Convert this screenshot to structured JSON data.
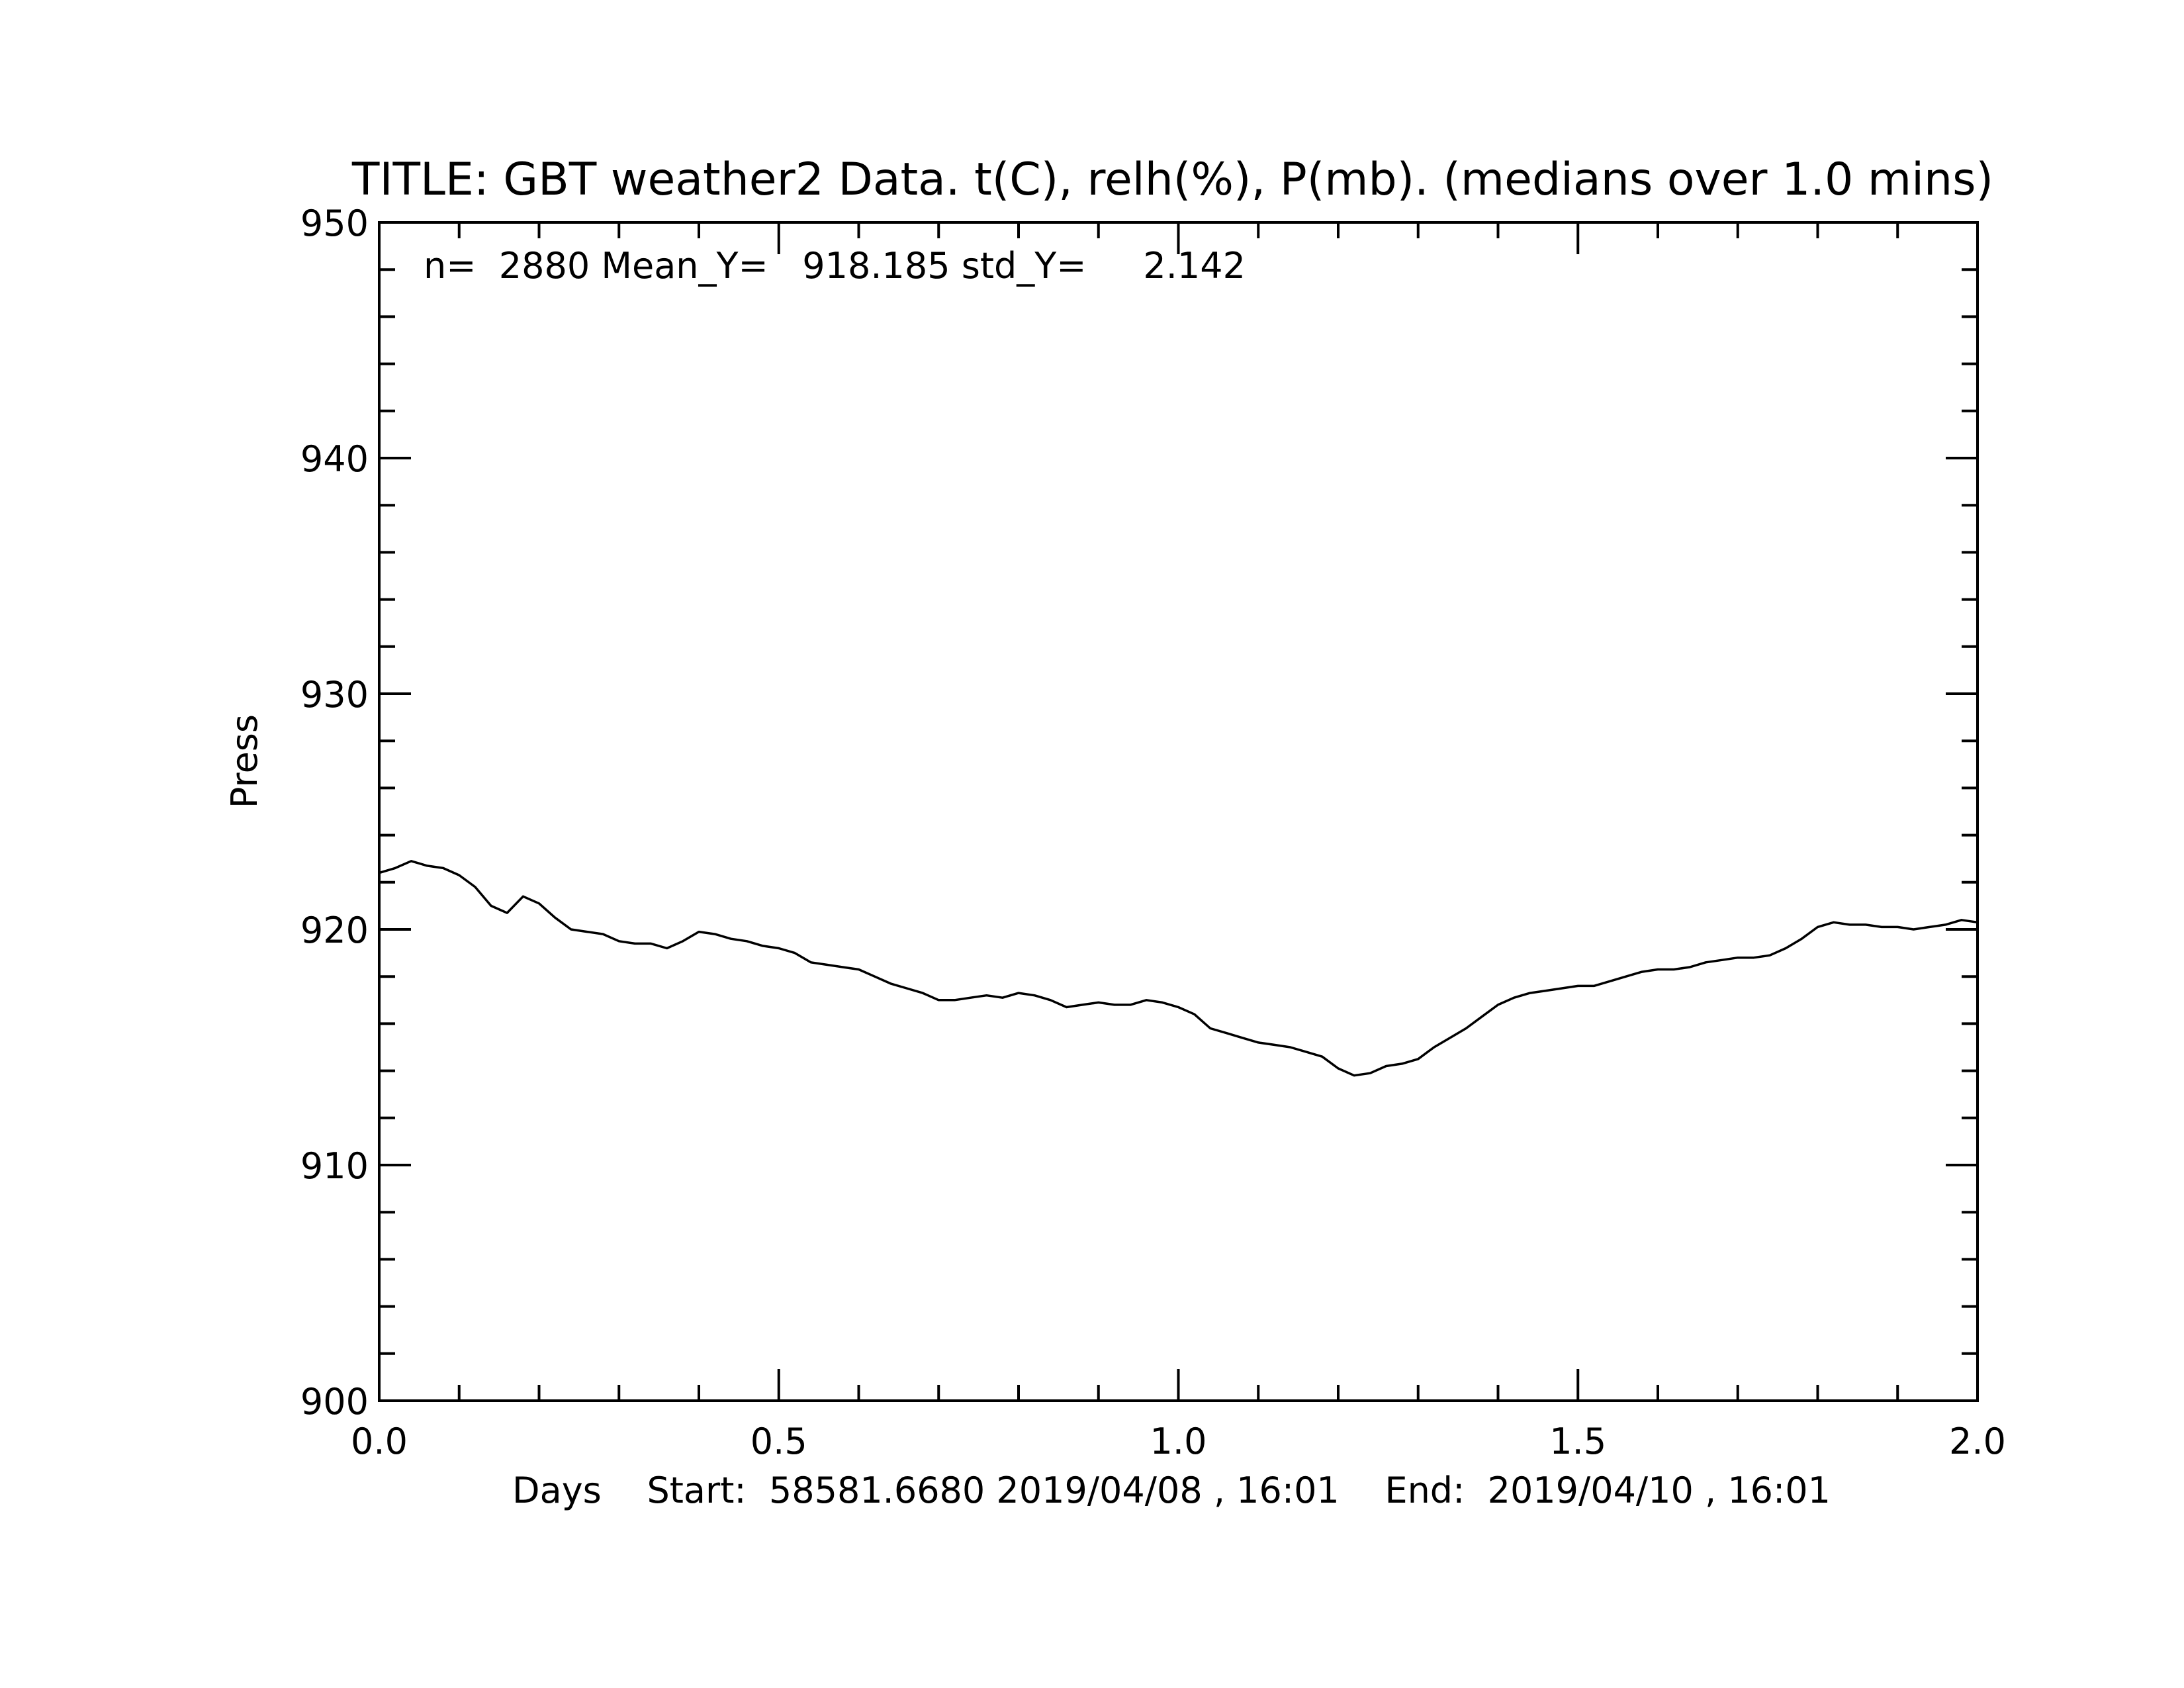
{
  "chart_data": {
    "type": "line",
    "title": "TITLE: GBT weather2 Data. t(C), relh(%), P(mb). (medians over 1.0 mins)",
    "stats_text": "n=  2880 Mean_Y=   918.185 std_Y=     2.142",
    "ylabel": "Press",
    "xlabel": "Days    Start:  58581.6680 2019/04/08 , 16:01    End:  2019/04/10 , 16:01",
    "xlim": [
      0.0,
      2.0
    ],
    "ylim": [
      900,
      950
    ],
    "x_ticks": [
      "0.0",
      "0.5",
      "1.0",
      "1.5",
      "2.0"
    ],
    "y_ticks": [
      "900",
      "910",
      "920",
      "930",
      "940",
      "950"
    ],
    "grid": false,
    "line_color": "#000000",
    "series": [
      {
        "x": [
          0.0,
          0.02,
          0.04,
          0.06,
          0.08,
          0.1,
          0.12,
          0.14,
          0.16,
          0.18,
          0.2,
          0.22,
          0.24,
          0.26,
          0.28,
          0.3,
          0.32,
          0.34,
          0.36,
          0.38,
          0.4,
          0.42,
          0.44,
          0.46,
          0.48,
          0.5,
          0.52,
          0.54,
          0.56,
          0.58,
          0.6,
          0.62,
          0.64,
          0.66,
          0.68,
          0.7,
          0.72,
          0.74,
          0.76,
          0.78,
          0.8,
          0.82,
          0.84,
          0.86,
          0.88,
          0.9,
          0.92,
          0.94,
          0.96,
          0.98,
          1.0,
          1.02,
          1.04,
          1.06,
          1.08,
          1.1,
          1.12,
          1.14,
          1.16,
          1.18,
          1.2,
          1.22,
          1.24,
          1.26,
          1.28,
          1.3,
          1.32,
          1.34,
          1.36,
          1.38,
          1.4,
          1.42,
          1.44,
          1.46,
          1.48,
          1.5,
          1.52,
          1.54,
          1.56,
          1.58,
          1.6,
          1.62,
          1.64,
          1.66,
          1.68,
          1.7,
          1.72,
          1.74,
          1.76,
          1.78,
          1.8,
          1.82,
          1.84,
          1.86,
          1.88,
          1.9,
          1.92,
          1.94,
          1.96,
          1.98,
          2.0
        ],
        "values": [
          922.4,
          922.6,
          922.9,
          922.7,
          922.6,
          922.3,
          921.8,
          921.0,
          920.7,
          921.4,
          921.1,
          920.5,
          920.0,
          919.9,
          919.8,
          919.5,
          919.4,
          919.4,
          919.2,
          919.5,
          919.9,
          919.8,
          919.6,
          919.5,
          919.3,
          919.2,
          919.0,
          918.6,
          918.5,
          918.4,
          918.3,
          918.0,
          917.7,
          917.5,
          917.3,
          917.0,
          917.0,
          917.1,
          917.2,
          917.1,
          917.3,
          917.2,
          917.0,
          916.7,
          916.8,
          916.9,
          916.8,
          916.8,
          917.0,
          916.9,
          916.7,
          916.4,
          915.8,
          915.6,
          915.4,
          915.2,
          915.1,
          915.0,
          914.8,
          914.6,
          914.1,
          913.8,
          913.9,
          914.2,
          914.3,
          914.5,
          915.0,
          915.4,
          915.8,
          916.3,
          916.8,
          917.1,
          917.3,
          917.4,
          917.5,
          917.6,
          917.6,
          917.8,
          918.0,
          918.2,
          918.3,
          918.3,
          918.4,
          918.6,
          918.7,
          918.8,
          918.8,
          918.9,
          919.2,
          919.6,
          920.1,
          920.3,
          920.2,
          920.2,
          920.1,
          920.1,
          920.0,
          920.1,
          920.2,
          920.4,
          920.3
        ]
      }
    ]
  }
}
